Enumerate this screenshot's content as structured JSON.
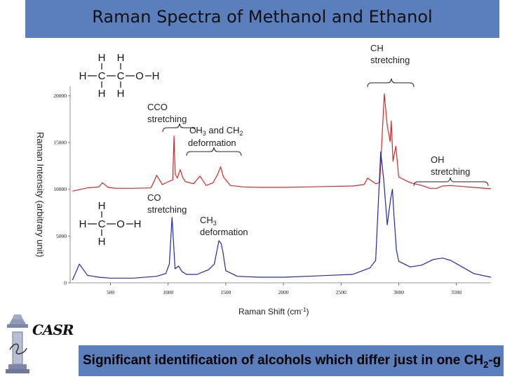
{
  "slide": {
    "title": "Raman Spectra of Methanol and Ethanol",
    "footer": "Significant identification of alcohols which differ just in one CH2-g",
    "logo_text": "CASR"
  },
  "structures": {
    "ethanol": {
      "top_h": [
        "H",
        "H"
      ],
      "row": [
        "H",
        "C",
        "C",
        "O",
        "H"
      ],
      "bottom_h": [
        "H",
        "H"
      ]
    },
    "methanol": {
      "top_h": "H",
      "row": [
        "H",
        "C",
        "O",
        "H"
      ],
      "bottom_h": "H"
    }
  },
  "annotations": {
    "ch_stretching": "CH stretching",
    "cco_stretching": "CCO stretching",
    "ch3_ch2_deformation": "CH3 and CH2 deformation",
    "oh_stretching": "OH stretching",
    "co_stretching": "CO stretching",
    "ch3_deformation": "CH3 deformation"
  },
  "colors": {
    "ethanol": "#d62728",
    "methanol": "#1f2aa8",
    "banner": "#5b7fbd"
  },
  "chart_data": {
    "type": "line",
    "title": "",
    "xlabel": "Raman Shift (cm-1)",
    "ylabel": "Raman Intensity (arbitrary unit)",
    "xlim": [
      150,
      3800
    ],
    "ylim": [
      0,
      21000
    ],
    "x_ticks": [
      500,
      1000,
      1500,
      2000,
      2500,
      3000,
      3500
    ],
    "y_ticks": [
      0,
      5000,
      10000,
      15000,
      20000
    ],
    "y_tick_labels": [
      "0",
      "5000",
      "10000",
      "15000",
      "20000"
    ],
    "grid": false,
    "series": [
      {
        "name": "",
        "color": "#d62728",
        "x": [
          170,
          300,
          400,
          430,
          480,
          550,
          700,
          850,
          880,
          900,
          950,
          1000,
          1040,
          1051,
          1062,
          1080,
          1096,
          1105,
          1125,
          1150,
          1220,
          1276,
          1330,
          1390,
          1430,
          1455,
          1480,
          1540,
          1650,
          1800,
          2000,
          2200,
          2400,
          2600,
          2700,
          2730,
          2800,
          2835,
          2875,
          2900,
          2925,
          2935,
          2950,
          2975,
          3000,
          3100,
          3200,
          3270,
          3330,
          3380,
          3450,
          3550,
          3650,
          3800
        ],
        "y": [
          9800,
          10150,
          10250,
          10700,
          10200,
          10100,
          10100,
          10150,
          10900,
          11500,
          10500,
          10800,
          11000,
          15700,
          11600,
          11200,
          11800,
          12100,
          11300,
          10800,
          10600,
          11400,
          10400,
          10700,
          11600,
          12400,
          11300,
          10400,
          10250,
          10200,
          10200,
          10250,
          10300,
          10350,
          10500,
          11200,
          10600,
          10700,
          20200,
          16800,
          15100,
          17300,
          13000,
          14600,
          11300,
          10700,
          10400,
          10100,
          10100,
          10350,
          10400,
          10300,
          10200,
          10050
        ]
      },
      {
        "name": "",
        "color": "#1f2aa8",
        "x": [
          170,
          230,
          300,
          400,
          500,
          700,
          900,
          980,
          1010,
          1034,
          1060,
          1090,
          1100,
          1120,
          1160,
          1250,
          1350,
          1400,
          1440,
          1460,
          1475,
          1500,
          1600,
          1800,
          2000,
          2200,
          2400,
          2600,
          2750,
          2800,
          2844,
          2870,
          2900,
          2930,
          2945,
          2960,
          2980,
          3000,
          3100,
          3200,
          3300,
          3380,
          3450,
          3550,
          3650,
          3800
        ],
        "y": [
          300,
          2000,
          800,
          600,
          500,
          500,
          700,
          1000,
          2000,
          7000,
          1500,
          1800,
          1600,
          1200,
          900,
          900,
          1400,
          2000,
          4500,
          4200,
          3300,
          1300,
          700,
          600,
          600,
          700,
          800,
          900,
          1600,
          2400,
          14000,
          11000,
          6200,
          9000,
          10000,
          7000,
          3500,
          2300,
          1700,
          1900,
          2500,
          2650,
          2400,
          1700,
          1000,
          600
        ]
      }
    ]
  }
}
